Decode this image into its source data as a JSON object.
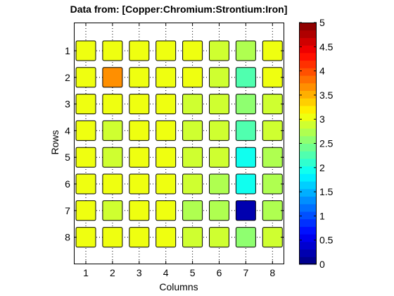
{
  "chart_data": {
    "type": "heatmap",
    "title": "Data from: [Copper:Chromium:Strontium:Iron]",
    "xlabel": "Columns",
    "ylabel": "Rows",
    "x_ticks": [
      "1",
      "2",
      "3",
      "4",
      "5",
      "6",
      "7",
      "8"
    ],
    "y_ticks": [
      "1",
      "2",
      "3",
      "4",
      "5",
      "6",
      "7",
      "8"
    ],
    "values": [
      [
        3.0,
        3.0,
        3.0,
        3.0,
        3.0,
        2.9,
        2.8,
        3.0
      ],
      [
        3.0,
        3.6,
        3.0,
        3.0,
        3.0,
        2.9,
        2.3,
        3.0
      ],
      [
        3.0,
        3.0,
        3.0,
        3.0,
        2.9,
        2.9,
        2.5,
        2.9
      ],
      [
        3.0,
        2.9,
        3.0,
        3.0,
        2.9,
        2.9,
        2.3,
        2.9
      ],
      [
        3.0,
        2.9,
        3.0,
        3.0,
        2.9,
        2.9,
        2.0,
        2.7
      ],
      [
        3.0,
        3.0,
        3.0,
        3.0,
        2.9,
        2.7,
        2.0,
        2.7
      ],
      [
        3.0,
        2.9,
        3.0,
        3.0,
        2.7,
        2.7,
        0.2,
        2.7
      ],
      [
        3.0,
        3.0,
        3.0,
        3.0,
        2.9,
        2.9,
        2.5,
        2.9
      ]
    ],
    "colorbar": {
      "min": 0,
      "max": 5,
      "ticks": [
        "0",
        "0.5",
        "1",
        "1.5",
        "2",
        "2.5",
        "3",
        "3.5",
        "4",
        "4.5",
        "5"
      ],
      "levels": 32,
      "colormap": "jet"
    },
    "grid": true
  }
}
